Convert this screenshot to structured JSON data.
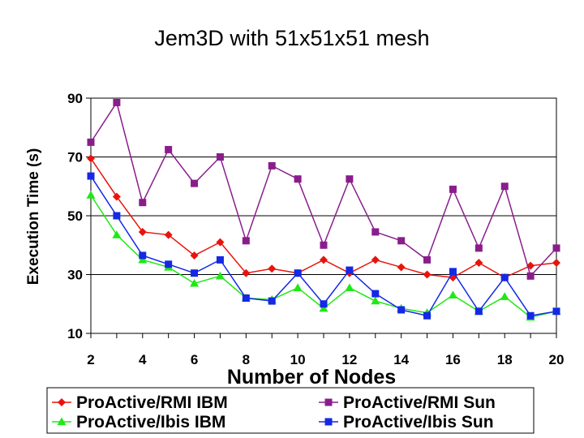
{
  "chart_data": {
    "type": "line",
    "title": "Jem3D with 51x51x51 mesh",
    "xlabel": "Number of Nodes",
    "ylabel": "Execution Time (s)",
    "xlim": [
      2,
      20
    ],
    "ylim": [
      10,
      90
    ],
    "xticks": [
      "2",
      "4",
      "6",
      "8",
      "10",
      "12",
      "14",
      "16",
      "18",
      "20"
    ],
    "yticks": [
      "10",
      "30",
      "50",
      "70",
      "90"
    ],
    "grid": "horizontal",
    "legend_position": "bottom",
    "x": [
      2,
      3,
      4,
      5,
      6,
      7,
      8,
      9,
      10,
      11,
      12,
      13,
      14,
      15,
      16,
      17,
      18,
      19,
      20
    ],
    "series": [
      {
        "name": "ProActive/RMI IBM",
        "color": "#e8140c",
        "marker": "diamond",
        "values": [
          69.5,
          56.5,
          44.5,
          43.5,
          36.5,
          41,
          30.5,
          32,
          30.5,
          35,
          30.5,
          35,
          32.5,
          30,
          29,
          34,
          29,
          33,
          34
        ]
      },
      {
        "name": "ProActive/RMI Sun",
        "color": "#8a1d8c",
        "marker": "square",
        "values": [
          75,
          88.5,
          54.5,
          72.5,
          61,
          70,
          41.5,
          67,
          62.5,
          40,
          62.5,
          44.5,
          41.5,
          35,
          59,
          39,
          60,
          29.5,
          39
        ]
      },
      {
        "name": "ProActive/Ibis IBM",
        "color": "#1fe816",
        "marker": "triangle",
        "values": [
          57,
          43.5,
          35,
          32.5,
          27,
          29.5,
          22,
          21.5,
          25.5,
          18.5,
          25.5,
          21,
          18.5,
          17,
          23,
          17.5,
          22.5,
          15.5,
          17.5
        ]
      },
      {
        "name": "ProActive/Ibis Sun",
        "color": "#1428e6",
        "marker": "square",
        "values": [
          63.5,
          50,
          36.5,
          33.5,
          30.5,
          35,
          22,
          21,
          30.5,
          20,
          31.5,
          23.5,
          18,
          16,
          31,
          17.5,
          29,
          16,
          17.5
        ]
      }
    ]
  }
}
